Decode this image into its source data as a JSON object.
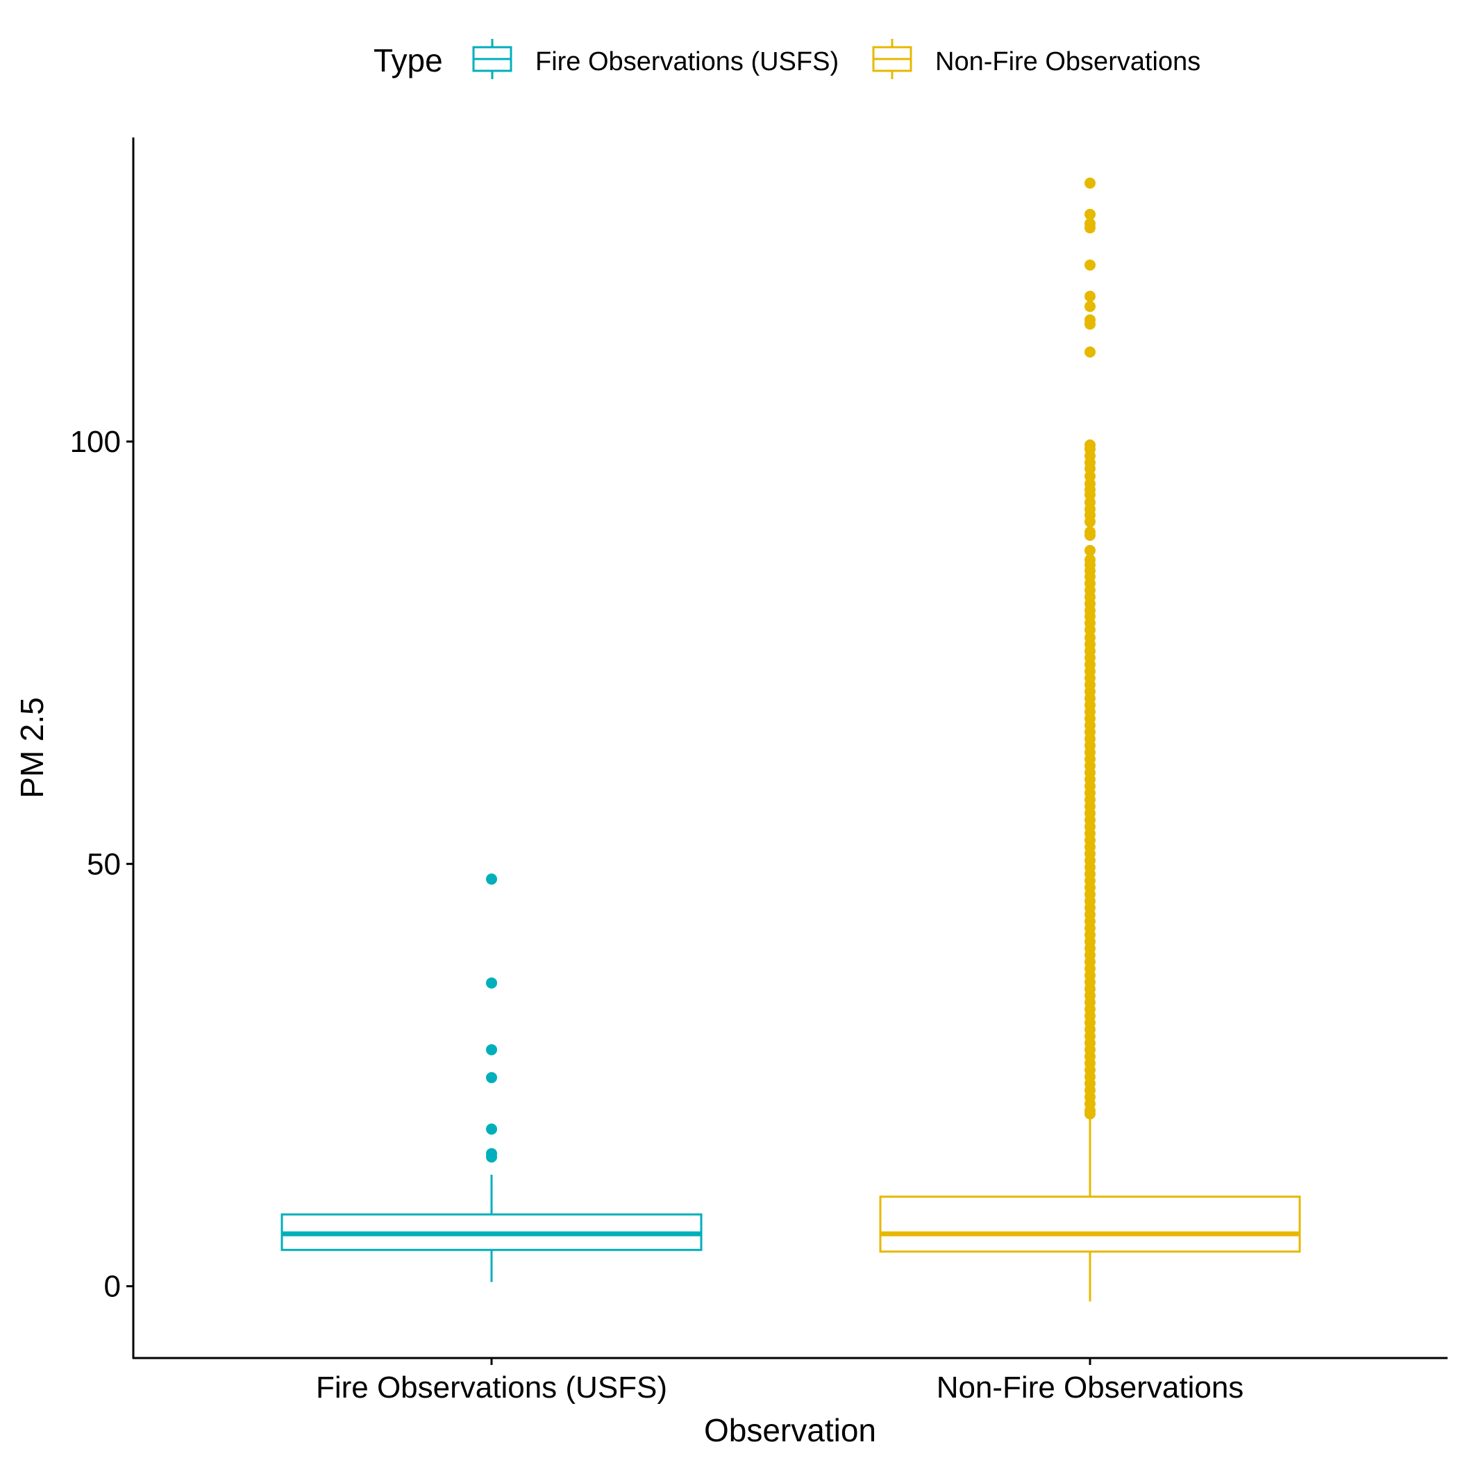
{
  "chart_data": {
    "type": "boxplot",
    "title": "",
    "xlabel": "Observation",
    "ylabel": "PM 2.5",
    "ylim": [
      -8.5,
      136
    ],
    "yticks": [
      0,
      50,
      100
    ],
    "grid": false,
    "legend": {
      "title": "Type",
      "position": "top",
      "entries": [
        "Fire Observations (USFS)",
        "Non-Fire Observations"
      ]
    },
    "categories": [
      "Fire Observations (USFS)",
      "Non-Fire Observations"
    ],
    "series": [
      {
        "name": "Fire Observations (USFS)",
        "color": "#00AFBB",
        "lower_whisker": 0.5,
        "q1": 4.3,
        "median": 6.2,
        "q3": 8.5,
        "upper_whisker": 13.2,
        "outliers": [
          48.2,
          35.9,
          28.0,
          24.7,
          18.6,
          15.7,
          15.3
        ]
      },
      {
        "name": "Non-Fire Observations",
        "color": "#E7B800",
        "lower_whisker": -1.8,
        "q1": 4.1,
        "median": 6.2,
        "q3": 10.6,
        "upper_whisker": 20.3,
        "outliers": [
          130.6,
          126.9,
          125.8,
          125.3,
          120.9,
          117.2,
          116.0,
          114.4,
          113.9,
          110.6,
          99.6,
          99.1,
          98.3,
          97.5,
          96.8,
          95.9,
          95.0,
          94.3,
          93.7,
          92.8,
          92.0,
          91.3,
          90.5,
          89.3,
          88.9,
          87.1,
          86.0,
          85.4,
          84.7,
          84.0,
          83.2,
          82.4,
          81.6,
          80.8,
          80.0,
          79.3,
          78.5,
          77.7,
          76.8,
          76.0,
          75.2,
          74.4,
          73.6,
          72.8,
          72.0,
          71.2,
          70.4,
          69.6,
          68.8,
          68.0,
          67.2,
          66.4,
          65.6,
          64.8,
          64.0,
          63.2,
          62.4,
          61.6,
          60.8,
          60.0,
          59.2,
          58.4,
          57.6,
          56.8,
          56.0,
          55.2,
          54.4,
          53.6,
          52.8,
          52.0,
          51.2,
          50.4,
          49.6,
          48.8,
          48.0,
          47.2,
          46.4,
          45.6,
          44.8,
          44.0,
          43.2,
          42.4,
          41.6,
          40.8,
          40.0,
          39.2,
          38.4,
          37.6,
          36.8,
          36.0,
          35.2,
          34.4,
          33.6,
          32.8,
          32.0,
          31.2,
          30.4,
          29.6,
          28.8,
          28.0,
          27.2,
          26.4,
          25.6,
          24.8,
          24.0,
          23.2,
          22.4,
          21.6,
          20.8,
          20.4
        ]
      }
    ]
  }
}
